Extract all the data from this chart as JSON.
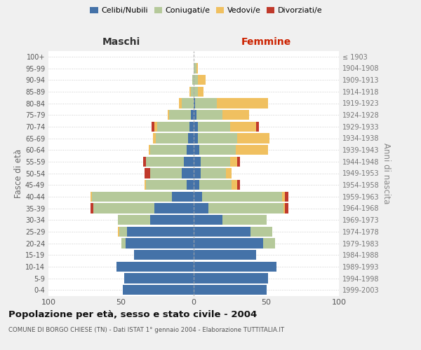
{
  "age_groups": [
    "0-4",
    "5-9",
    "10-14",
    "15-19",
    "20-24",
    "25-29",
    "30-34",
    "35-39",
    "40-44",
    "45-49",
    "50-54",
    "55-59",
    "60-64",
    "65-69",
    "70-74",
    "75-79",
    "80-84",
    "85-89",
    "90-94",
    "95-99",
    "100+"
  ],
  "birth_years": [
    "1999-2003",
    "1994-1998",
    "1989-1993",
    "1984-1988",
    "1979-1983",
    "1974-1978",
    "1969-1973",
    "1964-1968",
    "1959-1963",
    "1954-1958",
    "1949-1953",
    "1944-1948",
    "1939-1943",
    "1934-1938",
    "1929-1933",
    "1924-1928",
    "1919-1923",
    "1914-1918",
    "1909-1913",
    "1904-1908",
    "≤ 1903"
  ],
  "males": {
    "celibi": [
      49,
      48,
      53,
      41,
      47,
      46,
      30,
      27,
      15,
      5,
      8,
      7,
      5,
      4,
      3,
      2,
      0,
      0,
      0,
      0,
      0
    ],
    "coniugati": [
      0,
      0,
      0,
      0,
      3,
      5,
      22,
      42,
      55,
      28,
      22,
      26,
      25,
      22,
      22,
      15,
      8,
      2,
      1,
      0,
      0
    ],
    "vedovi": [
      0,
      0,
      0,
      0,
      0,
      1,
      0,
      0,
      1,
      1,
      0,
      0,
      1,
      2,
      2,
      1,
      2,
      1,
      0,
      0,
      0
    ],
    "divorziati": [
      0,
      0,
      0,
      0,
      0,
      0,
      0,
      2,
      0,
      0,
      4,
      2,
      0,
      0,
      2,
      0,
      0,
      0,
      0,
      0,
      0
    ]
  },
  "females": {
    "nubili": [
      50,
      51,
      57,
      43,
      48,
      39,
      20,
      10,
      6,
      4,
      5,
      5,
      4,
      3,
      3,
      2,
      1,
      0,
      0,
      0,
      0
    ],
    "coniugate": [
      0,
      0,
      0,
      0,
      8,
      15,
      30,
      52,
      55,
      22,
      17,
      20,
      25,
      27,
      22,
      18,
      15,
      3,
      3,
      2,
      0
    ],
    "vedove": [
      0,
      0,
      0,
      0,
      0,
      0,
      0,
      1,
      2,
      4,
      4,
      5,
      22,
      22,
      18,
      18,
      35,
      4,
      5,
      1,
      0
    ],
    "divorziate": [
      0,
      0,
      0,
      0,
      0,
      0,
      0,
      2,
      2,
      2,
      0,
      2,
      0,
      0,
      2,
      0,
      0,
      0,
      0,
      0,
      0
    ]
  },
  "colors": {
    "celibi_nubili": "#4472a8",
    "coniugati": "#b5c99a",
    "vedovi": "#f0c060",
    "divorziati": "#c0392b"
  },
  "xlim": 100,
  "title": "Popolazione per età, sesso e stato civile - 2004",
  "subtitle": "COMUNE DI BORGO CHIESE (TN) - Dati ISTAT 1° gennaio 2004 - Elaborazione TUTTITALIA.IT",
  "ylabel_left": "Fasce di età",
  "ylabel_right": "Anni di nascita",
  "xlabel_left": "Maschi",
  "xlabel_right": "Femmine",
  "bg_color": "#f0f0f0",
  "plot_bg": "#ffffff"
}
